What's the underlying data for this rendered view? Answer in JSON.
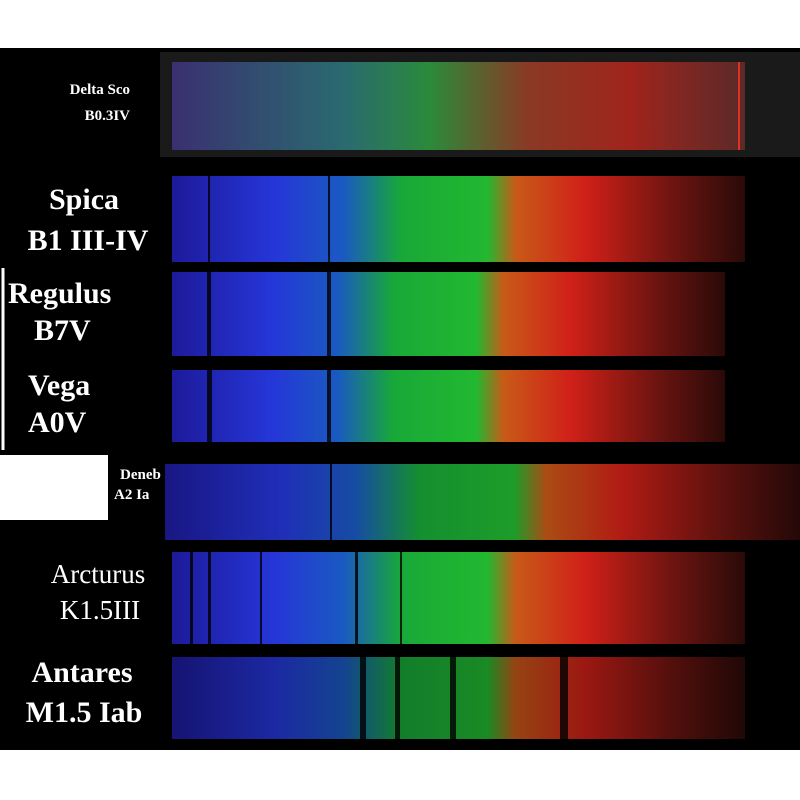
{
  "spectra": [
    {
      "name": "Delta Sco",
      "class": "B0.3IV"
    },
    {
      "name": "Spica",
      "class": "B1 III-IV"
    },
    {
      "name": "Regulus",
      "class": "B7V"
    },
    {
      "name": "Vega",
      "class": "A0V"
    },
    {
      "name": "Deneb",
      "class": "A2 Ia"
    },
    {
      "name": "Arcturus",
      "class": "K1.5III"
    },
    {
      "name": "Antares",
      "class": "M1.5 Iab"
    }
  ]
}
